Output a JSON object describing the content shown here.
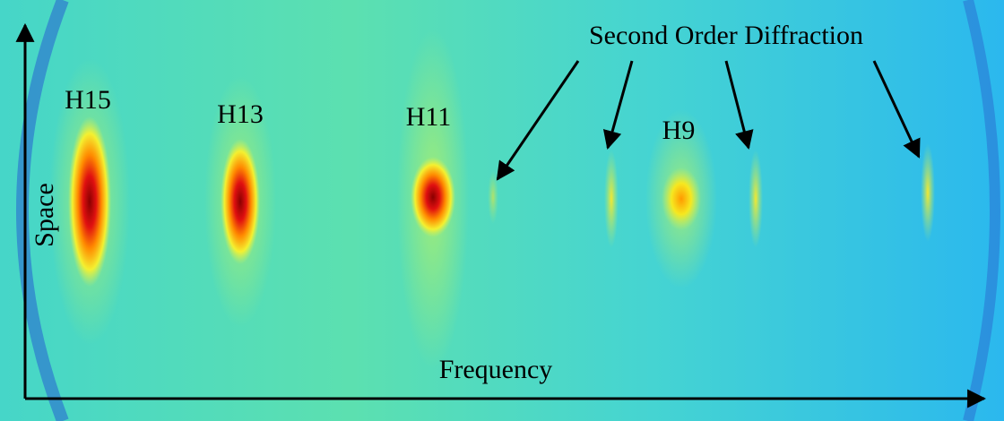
{
  "labels": {
    "harmonics": [
      "H15",
      "H13",
      "H11",
      "H9"
    ],
    "annotation": "Second Order Diffraction",
    "x_axis": "Frequency",
    "y_axis": "Space"
  }
}
